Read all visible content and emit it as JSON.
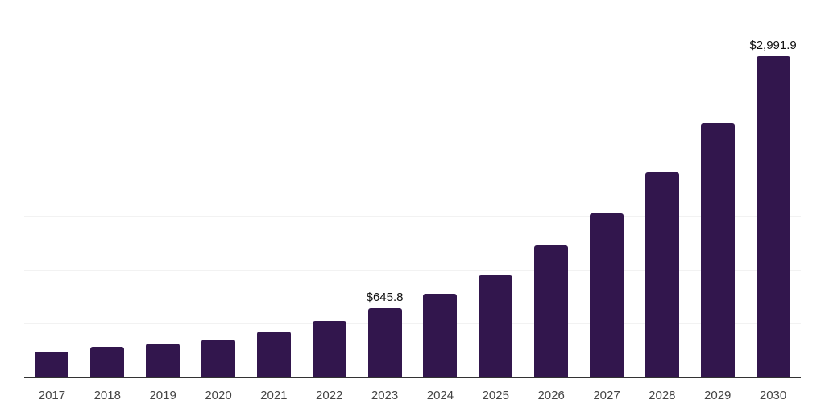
{
  "chart_data": {
    "type": "bar",
    "title": "",
    "xlabel": "",
    "ylabel": "",
    "categories": [
      "2017",
      "2018",
      "2019",
      "2020",
      "2021",
      "2022",
      "2023",
      "2024",
      "2025",
      "2026",
      "2027",
      "2028",
      "2029",
      "2030"
    ],
    "values": [
      240,
      285,
      313,
      350,
      425,
      522,
      645.8,
      782,
      955,
      1231,
      1530,
      1910,
      2372,
      2991.9
    ],
    "point_labels": {
      "2023": "$645.8",
      "2030": "$2,991.9"
    },
    "ylim": [
      0,
      3500
    ],
    "grid_interval": 500,
    "grid": true,
    "legend": false,
    "y_tick_labels_visible": false,
    "colors": {
      "bar": "#32164d",
      "axis": "#333333",
      "gridline": "#f2f2f2",
      "x_label": "#444444",
      "data_label": "#111111",
      "background": "#ffffff"
    }
  }
}
